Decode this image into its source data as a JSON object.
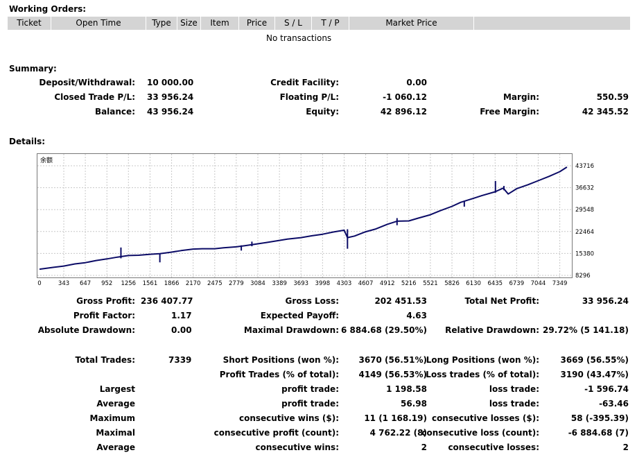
{
  "working_orders": {
    "title": "Working Orders:",
    "columns": [
      "Ticket",
      "Open Time",
      "Type",
      "Size",
      "Item",
      "Price",
      "S / L",
      "T / P",
      "Market Price"
    ],
    "empty_message": "No transactions"
  },
  "summary": {
    "title": "Summary:",
    "deposit_label": "Deposit/Withdrawal:",
    "deposit_value": "10 000.00",
    "credit_label": "Credit Facility:",
    "credit_value": "0.00",
    "closed_pl_label": "Closed Trade P/L:",
    "closed_pl_value": "33 956.24",
    "floating_pl_label": "Floating P/L:",
    "floating_pl_value": "-1 060.12",
    "margin_label": "Margin:",
    "margin_value": "550.59",
    "balance_label": "Balance:",
    "balance_value": "43 956.24",
    "equity_label": "Equity:",
    "equity_value": "42 896.12",
    "free_margin_label": "Free Margin:",
    "free_margin_value": "42 345.52"
  },
  "details": {
    "title": "Details:",
    "gross_profit_label": "Gross Profit:",
    "gross_profit_value": "236 407.77",
    "gross_loss_label": "Gross Loss:",
    "gross_loss_value": "202 451.53",
    "net_profit_label": "Total Net Profit:",
    "net_profit_value": "33 956.24",
    "profit_factor_label": "Profit Factor:",
    "profit_factor_value": "1.17",
    "expected_payoff_label": "Expected Payoff:",
    "expected_payoff_value": "4.63",
    "abs_dd_label": "Absolute Drawdown:",
    "abs_dd_value": "0.00",
    "max_dd_label": "Maximal Drawdown:",
    "max_dd_value": "6 884.68 (29.50%)",
    "rel_dd_label": "Relative Drawdown:",
    "rel_dd_value": "29.72% (5 141.18)",
    "total_trades_label": "Total Trades:",
    "total_trades_value": "7339",
    "short_label": "Short Positions (won %):",
    "short_value": "3670 (56.51%)",
    "long_label": "Long Positions (won %):",
    "long_value": "3669 (56.55%)",
    "profit_trades_label": "Profit Trades (% of total):",
    "profit_trades_value": "4149 (56.53%)",
    "loss_trades_label": "Loss trades (% of total):",
    "loss_trades_value": "3190 (43.47%)",
    "largest_label": "Largest",
    "largest_profit_label": "profit trade:",
    "largest_profit_value": "1 198.58",
    "largest_loss_label": "loss trade:",
    "largest_loss_value": "-1 596.74",
    "average_label": "Average",
    "average_profit_label": "profit trade:",
    "average_profit_value": "56.98",
    "average_loss_label": "loss trade:",
    "average_loss_value": "-63.46",
    "maximum_label": "Maximum",
    "max_cons_wins_label": "consecutive wins ($):",
    "max_cons_wins_value": "11 (1 168.19)",
    "max_cons_losses_label": "consecutive losses ($):",
    "max_cons_losses_value": "58 (-395.39)",
    "maximal_label": "Maximal",
    "maximal_cons_profit_label": "consecutive profit (count):",
    "maximal_cons_profit_value": "4 762.22 (8)",
    "maximal_cons_loss_label": "consecutive loss (count):",
    "maximal_cons_loss_value": "-6 884.68 (7)",
    "average2_label": "Average",
    "avg_cons_wins_label": "consecutive wins:",
    "avg_cons_wins_value": "2",
    "avg_cons_losses_label": "consecutive losses:",
    "avg_cons_losses_value": "2"
  },
  "chart_data": {
    "type": "line",
    "title": "余额",
    "x_ticks": [
      "0",
      "343",
      "647",
      "952",
      "1256",
      "1561",
      "1866",
      "2170",
      "2475",
      "2779",
      "3084",
      "3389",
      "3693",
      "3998",
      "4303",
      "4607",
      "4912",
      "5216",
      "5521",
      "5826",
      "6130",
      "6435",
      "6739",
      "7044",
      "7349"
    ],
    "y_ticks": [
      "43716",
      "36632",
      "29548",
      "22464",
      "15380",
      "8296"
    ],
    "xlim": [
      0,
      7480
    ],
    "ylim": [
      8296,
      43716
    ],
    "grid": true,
    "series": [
      {
        "color": "#0b0b66",
        "x": [
          0,
          200,
          343,
          500,
          647,
          800,
          952,
          1100,
          1256,
          1400,
          1561,
          1700,
          1866,
          2000,
          2170,
          2300,
          2475,
          2600,
          2779,
          2900,
          3084,
          3200,
          3389,
          3500,
          3693,
          3850,
          3998,
          4150,
          4303,
          4350,
          4450,
          4607,
          4750,
          4912,
          5050,
          5216,
          5350,
          5521,
          5650,
          5826,
          5950,
          6130,
          6250,
          6435,
          6550,
          6620,
          6739,
          6900,
          7044,
          7200,
          7349,
          7450
        ],
        "y": [
          10300,
          10900,
          11300,
          12000,
          12400,
          13100,
          13600,
          14200,
          14700,
          14800,
          15100,
          15300,
          15800,
          16300,
          16800,
          16900,
          16900,
          17200,
          17500,
          17900,
          18500,
          18900,
          19600,
          20000,
          20500,
          21100,
          21600,
          22300,
          22900,
          20500,
          21000,
          22400,
          23300,
          24800,
          25800,
          25900,
          26800,
          27900,
          29100,
          30600,
          31900,
          33200,
          34100,
          35300,
          36500,
          34600,
          36300,
          37600,
          38900,
          40300,
          41800,
          43300
        ],
        "spikes": [
          {
            "x": 1150,
            "y0": 13800,
            "y1": 17300
          },
          {
            "x": 1700,
            "y0": 12500,
            "y1": 15200
          },
          {
            "x": 2850,
            "y0": 16300,
            "y1": 18000
          },
          {
            "x": 3000,
            "y0": 17700,
            "y1": 19200
          },
          {
            "x": 4350,
            "y0": 16900,
            "y1": 23200
          },
          {
            "x": 5050,
            "y0": 24500,
            "y1": 26800
          },
          {
            "x": 6000,
            "y0": 30500,
            "y1": 32400
          },
          {
            "x": 6440,
            "y0": 35000,
            "y1": 38800
          },
          {
            "x": 6560,
            "y0": 35800,
            "y1": 37200
          }
        ]
      }
    ]
  }
}
